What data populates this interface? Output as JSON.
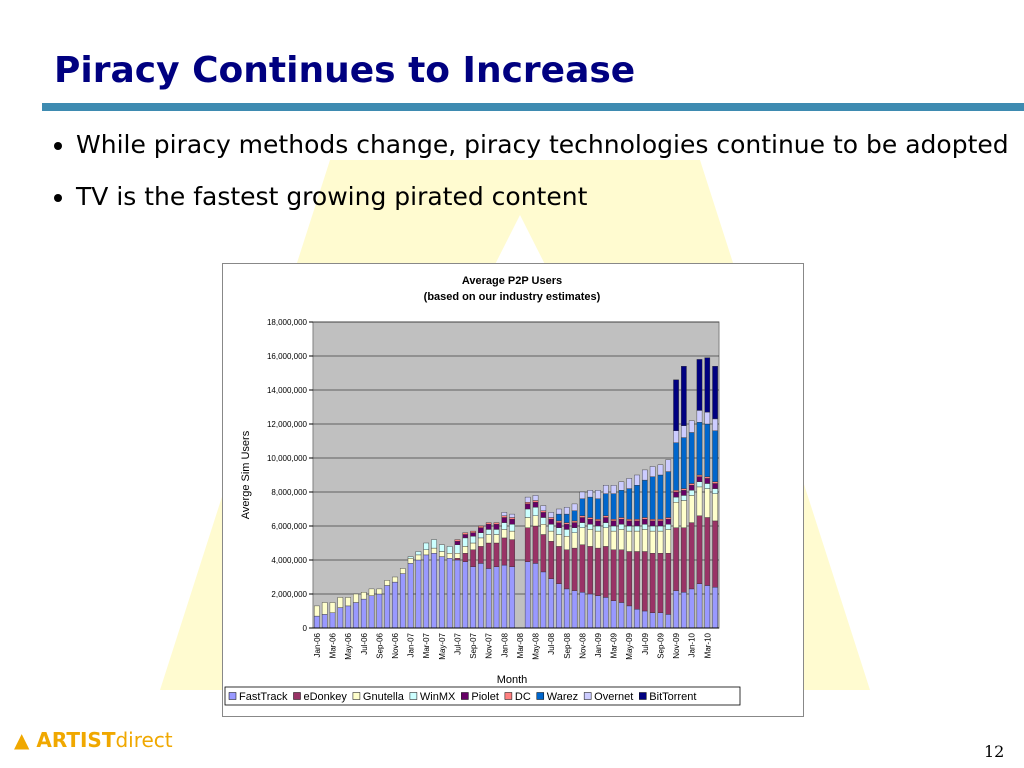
{
  "slide": {
    "title": "Piracy Continues to Increase",
    "bullets": [
      "While piracy methods change, piracy technologies continue to be adopted",
      "TV is the fastest growing pirated content"
    ],
    "logo": [
      "ARTIST",
      "direct"
    ],
    "page_number": "12"
  },
  "chart_data": {
    "type": "stacked_bar",
    "title": "Average P2P Users",
    "subtitle": "(based on our industry estimates)",
    "x_label": "Month",
    "y_label": "Averge Sim Users",
    "categories": [
      "Jan-06",
      null,
      "Mar-06",
      null,
      "May-06",
      null,
      "Jul-06",
      null,
      "Sep-06",
      null,
      "Nov-06",
      null,
      "Jan-07",
      null,
      "Mar-07",
      null,
      "May-07",
      null,
      "Jul-07",
      null,
      "Sep-07",
      null,
      "Nov-07",
      null,
      "Jan-08",
      null,
      "Mar-08",
      null,
      "May-08",
      null,
      "Jul-08",
      null,
      "Sep-08",
      null,
      "Nov-08",
      null,
      "Jan-09",
      null,
      "Mar-09",
      null,
      "May-09",
      null,
      "Jul-09",
      null,
      "Sep-09",
      null,
      "Nov-09",
      null,
      "Jan-10",
      null,
      "Mar-10",
      null
    ],
    "ylim": [
      0,
      18000000
    ],
    "yticks": [
      0,
      {
        "value": 2000000,
        "label": "2,000,000"
      },
      {
        "value": 4000000,
        "label": "4,000,000"
      },
      {
        "value": 6000000,
        "label": "6,000,000"
      },
      {
        "value": 8000000,
        "label": "8,000,000"
      },
      {
        "value": 10000000,
        "label": "10,000,000"
      },
      {
        "value": 12000000,
        "label": "12,000,000"
      },
      {
        "value": 14000000,
        "label": "14,000,000"
      },
      {
        "value": 16000000,
        "label": "16,000,000"
      },
      {
        "value": 18000000,
        "label": "18,000,000"
      }
    ],
    "grid": true,
    "legend": "bottom",
    "series": [
      {
        "name": "FastTrack",
        "color": "#9999ff",
        "values": [
          700000,
          800000,
          900000,
          1200000,
          1300000,
          1500000,
          1700000,
          1900000,
          2000000,
          2500000,
          2700000,
          3200000,
          3800000,
          4000000,
          4300000,
          4400000,
          4200000,
          4100000,
          4000000,
          3900000,
          3600000,
          3800000,
          3500000,
          3600000,
          3700000,
          3600000,
          null,
          3900000,
          3800000,
          3300000,
          2900000,
          2600000,
          2300000,
          2200000,
          2100000,
          2000000,
          1900000,
          1800000,
          1600000,
          1500000,
          1300000,
          1100000,
          1000000,
          900000,
          900000,
          800000,
          2200000,
          2100000,
          2300000,
          2600000,
          2500000,
          2400000
        ]
      },
      {
        "name": "eDonkey",
        "color": "#993366",
        "values": [
          0,
          0,
          0,
          0,
          0,
          0,
          0,
          0,
          0,
          0,
          0,
          0,
          0,
          0,
          0,
          0,
          0,
          0,
          100000,
          500000,
          1000000,
          1000000,
          1500000,
          1400000,
          1600000,
          1600000,
          null,
          2000000,
          2200000,
          2200000,
          2200000,
          2200000,
          2300000,
          2500000,
          2800000,
          2800000,
          2800000,
          3000000,
          3000000,
          3100000,
          3200000,
          3400000,
          3500000,
          3500000,
          3500000,
          3600000,
          3700000,
          3800000,
          3900000,
          4000000,
          4000000,
          3900000
        ]
      },
      {
        "name": "Gnutella",
        "color": "#ffffcc",
        "values": [
          600000,
          700000,
          600000,
          600000,
          500000,
          500000,
          400000,
          400000,
          300000,
          300000,
          300000,
          300000,
          300000,
          300000,
          300000,
          300000,
          300000,
          300000,
          300000,
          400000,
          400000,
          500000,
          500000,
          500000,
          500000,
          500000,
          null,
          600000,
          600000,
          600000,
          600000,
          700000,
          800000,
          900000,
          1000000,
          1000000,
          1000000,
          1100000,
          1100000,
          1200000,
          1200000,
          1200000,
          1300000,
          1300000,
          1300000,
          1400000,
          1500000,
          1600000,
          1600000,
          1700000,
          1700000,
          1600000
        ]
      },
      {
        "name": "WinMX",
        "color": "#ccffff",
        "values": [
          0,
          0,
          0,
          0,
          0,
          0,
          0,
          0,
          0,
          0,
          0,
          0,
          100000,
          200000,
          400000,
          500000,
          400000,
          400000,
          500000,
          500000,
          400000,
          300000,
          300000,
          300000,
          400000,
          400000,
          null,
          500000,
          500000,
          400000,
          400000,
          400000,
          400000,
          300000,
          300000,
          300000,
          300000,
          300000,
          300000,
          300000,
          300000,
          300000,
          300000,
          300000,
          300000,
          300000,
          300000,
          300000,
          300000,
          300000,
          300000,
          300000
        ]
      },
      {
        "name": "Piolet",
        "color": "#660066",
        "values": [
          0,
          0,
          0,
          0,
          0,
          0,
          0,
          0,
          0,
          0,
          0,
          0,
          0,
          0,
          0,
          0,
          0,
          0,
          200000,
          200000,
          200000,
          300000,
          300000,
          300000,
          300000,
          300000,
          null,
          300000,
          300000,
          300000,
          300000,
          300000,
          300000,
          300000,
          300000,
          300000,
          300000,
          300000,
          300000,
          300000,
          300000,
          300000,
          300000,
          300000,
          300000,
          300000,
          300000,
          300000,
          300000,
          300000,
          300000,
          300000
        ]
      },
      {
        "name": "DC",
        "color": "#ff8080",
        "values": [
          0,
          0,
          0,
          0,
          0,
          0,
          0,
          0,
          0,
          0,
          0,
          0,
          0,
          0,
          0,
          0,
          0,
          0,
          100000,
          100000,
          100000,
          100000,
          100000,
          100000,
          100000,
          100000,
          null,
          100000,
          100000,
          100000,
          100000,
          100000,
          100000,
          100000,
          100000,
          100000,
          100000,
          100000,
          100000,
          100000,
          100000,
          100000,
          100000,
          100000,
          100000,
          100000,
          100000,
          100000,
          100000,
          100000,
          100000,
          100000
        ]
      },
      {
        "name": "Warez",
        "color": "#0066cc",
        "values": [
          0,
          0,
          0,
          0,
          0,
          0,
          0,
          0,
          0,
          0,
          0,
          0,
          0,
          0,
          0,
          0,
          0,
          0,
          0,
          0,
          0,
          0,
          0,
          0,
          0,
          0,
          null,
          0,
          0,
          0,
          0,
          400000,
          500000,
          600000,
          1000000,
          1200000,
          1200000,
          1300000,
          1500000,
          1600000,
          1800000,
          2000000,
          2200000,
          2500000,
          2600000,
          2700000,
          2800000,
          3000000,
          3000000,
          3100000,
          3100000,
          3000000
        ]
      },
      {
        "name": "Overnet",
        "color": "#ccccff",
        "values": [
          0,
          0,
          0,
          0,
          0,
          0,
          0,
          0,
          0,
          0,
          0,
          0,
          0,
          0,
          0,
          0,
          0,
          0,
          0,
          0,
          0,
          0,
          0,
          0,
          200000,
          200000,
          null,
          300000,
          300000,
          300000,
          300000,
          300000,
          400000,
          400000,
          400000,
          400000,
          500000,
          500000,
          500000,
          500000,
          600000,
          600000,
          600000,
          600000,
          600000,
          700000,
          700000,
          700000,
          700000,
          700000,
          700000,
          700000
        ]
      },
      {
        "name": "BitTorrent",
        "color": "#000080",
        "values": [
          0,
          0,
          0,
          0,
          0,
          0,
          0,
          0,
          0,
          0,
          0,
          0,
          0,
          0,
          0,
          0,
          0,
          0,
          0,
          0,
          0,
          0,
          0,
          0,
          0,
          0,
          null,
          0,
          0,
          0,
          0,
          0,
          0,
          0,
          0,
          0,
          0,
          0,
          0,
          0,
          0,
          0,
          0,
          0,
          0,
          0,
          3000000,
          3500000,
          0,
          3000000,
          3200000,
          3100000
        ]
      }
    ]
  }
}
